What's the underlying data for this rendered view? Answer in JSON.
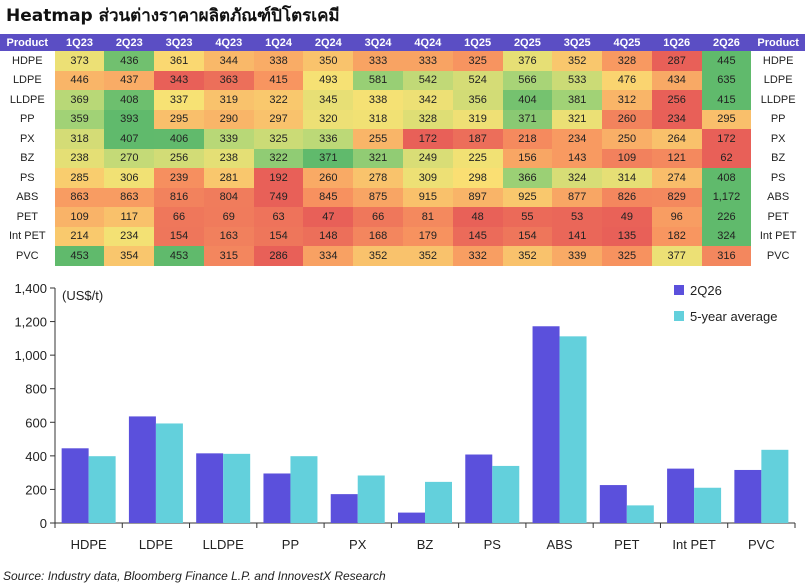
{
  "title": "Heatmap ส่วนต่างราคาผลิตภัณฑ์ปิโตรเคมี",
  "heatmap": {
    "product_header": "Product",
    "periods": [
      "1Q23",
      "2Q23",
      "3Q23",
      "4Q23",
      "1Q24",
      "2Q24",
      "3Q24",
      "4Q24",
      "1Q25",
      "2Q25",
      "3Q25",
      "4Q25",
      "1Q26",
      "2Q26"
    ],
    "rows": [
      {
        "product": "HDPE",
        "values": [
          "373",
          "436",
          "361",
          "344",
          "338",
          "350",
          "333",
          "333",
          "325",
          "376",
          "352",
          "328",
          "287",
          "445"
        ]
      },
      {
        "product": "LDPE",
        "values": [
          "446",
          "437",
          "343",
          "363",
          "415",
          "493",
          "581",
          "542",
          "524",
          "566",
          "533",
          "476",
          "434",
          "635"
        ]
      },
      {
        "product": "LLDPE",
        "values": [
          "369",
          "408",
          "337",
          "319",
          "322",
          "345",
          "338",
          "342",
          "356",
          "404",
          "381",
          "312",
          "256",
          "415"
        ]
      },
      {
        "product": "PP",
        "values": [
          "359",
          "393",
          "295",
          "290",
          "297",
          "320",
          "318",
          "328",
          "319",
          "371",
          "321",
          "260",
          "234",
          "295"
        ]
      },
      {
        "product": "PX",
        "values": [
          "318",
          "407",
          "406",
          "339",
          "325",
          "336",
          "255",
          "172",
          "187",
          "218",
          "234",
          "250",
          "264",
          "172"
        ]
      },
      {
        "product": "BZ",
        "values": [
          "238",
          "270",
          "256",
          "238",
          "322",
          "371",
          "321",
          "249",
          "225",
          "156",
          "143",
          "109",
          "121",
          "62"
        ]
      },
      {
        "product": "PS",
        "values": [
          "285",
          "306",
          "239",
          "281",
          "192",
          "260",
          "278",
          "309",
          "298",
          "366",
          "324",
          "314",
          "274",
          "408"
        ]
      },
      {
        "product": "ABS",
        "values": [
          "863",
          "863",
          "816",
          "804",
          "749",
          "845",
          "875",
          "915",
          "897",
          "925",
          "877",
          "826",
          "829",
          "1,172"
        ]
      },
      {
        "product": "PET",
        "values": [
          "109",
          "117",
          "66",
          "69",
          "63",
          "47",
          "66",
          "81",
          "48",
          "55",
          "53",
          "49",
          "96",
          "226"
        ]
      },
      {
        "product": "Int PET",
        "values": [
          "214",
          "234",
          "154",
          "163",
          "154",
          "148",
          "168",
          "179",
          "145",
          "154",
          "141",
          "135",
          "182",
          "324"
        ]
      },
      {
        "product": "PVC",
        "values": [
          "453",
          "354",
          "453",
          "315",
          "286",
          "334",
          "352",
          "352",
          "332",
          "352",
          "339",
          "325",
          "377",
          "316"
        ]
      }
    ]
  },
  "chart_data": {
    "type": "bar",
    "ylabel": "(US$/t)",
    "categories": [
      "HDPE",
      "LDPE",
      "LLDPE",
      "PP",
      "PX",
      "BZ",
      "PS",
      "ABS",
      "PET",
      "Int PET",
      "PVC"
    ],
    "series": [
      {
        "name": "2Q26",
        "color": "#5b50dc",
        "values": [
          445,
          635,
          415,
          295,
          172,
          62,
          408,
          1172,
          226,
          324,
          316
        ]
      },
      {
        "name": "5-year average",
        "color": "#63d0dc",
        "values": [
          398,
          593,
          412,
          398,
          283,
          245,
          340,
          1112,
          105,
          210,
          436
        ]
      }
    ],
    "ylim": [
      0,
      1400
    ],
    "yticks": [
      "0",
      "200",
      "400",
      "600",
      "800",
      "1,000",
      "1,200",
      "1,400"
    ],
    "legend_position": "top-right",
    "grid": false
  },
  "source": "Source: Industry data, Bloomberg Finance L.P. and InnovestX Research"
}
